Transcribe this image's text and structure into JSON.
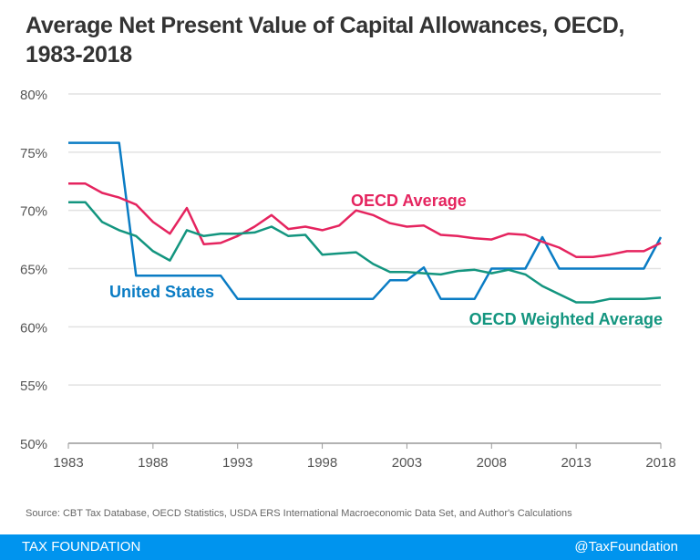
{
  "chart_data": {
    "type": "line",
    "title": "Average Net Present Value of Capital Allowances, OECD, 1983-2018",
    "xlabel": "",
    "ylabel": "",
    "xlim": [
      1983,
      2018
    ],
    "ylim": [
      50,
      80
    ],
    "x_ticks": [
      1983,
      1988,
      1993,
      1998,
      2003,
      2008,
      2013,
      2018
    ],
    "y_ticks": [
      "50%",
      "55%",
      "60%",
      "65%",
      "70%",
      "75%",
      "80%"
    ],
    "grid": "horizontal",
    "legend": "inline labels",
    "x": [
      1983,
      1984,
      1985,
      1986,
      1987,
      1988,
      1989,
      1990,
      1991,
      1992,
      1993,
      1994,
      1995,
      1996,
      1997,
      1998,
      1999,
      2000,
      2001,
      2002,
      2003,
      2004,
      2005,
      2006,
      2007,
      2008,
      2009,
      2010,
      2011,
      2012,
      2013,
      2014,
      2015,
      2016,
      2017,
      2018
    ],
    "series": [
      {
        "name": "United States",
        "color": "#0a7cc4",
        "values": [
          75.8,
          75.8,
          75.8,
          75.8,
          64.4,
          64.4,
          64.4,
          64.4,
          64.4,
          64.4,
          62.4,
          62.4,
          62.4,
          62.4,
          62.4,
          62.4,
          62.4,
          62.4,
          62.4,
          64.0,
          64.0,
          65.1,
          62.4,
          62.4,
          62.4,
          65.0,
          65.0,
          65.0,
          67.7,
          65.0,
          65.0,
          65.0,
          65.0,
          65.0,
          65.0,
          67.7
        ]
      },
      {
        "name": "OECD Average",
        "color": "#e5245f",
        "values": [
          72.3,
          72.3,
          71.5,
          71.1,
          70.5,
          69.0,
          68.0,
          70.2,
          67.1,
          67.2,
          67.8,
          68.6,
          69.6,
          68.4,
          68.6,
          68.3,
          68.7,
          70.0,
          69.6,
          68.9,
          68.6,
          68.7,
          67.9,
          67.8,
          67.6,
          67.5,
          68.0,
          67.9,
          67.3,
          66.8,
          66.0,
          66.0,
          66.2,
          66.5,
          66.5,
          67.2
        ]
      },
      {
        "name": "OECD Weighted Average",
        "color": "#13957f",
        "values": [
          70.7,
          70.7,
          69.0,
          68.3,
          67.8,
          66.5,
          65.7,
          68.3,
          67.8,
          68.0,
          68.0,
          68.1,
          68.6,
          67.8,
          67.9,
          66.2,
          66.3,
          66.4,
          65.4,
          64.7,
          64.7,
          64.6,
          64.5,
          64.8,
          64.9,
          64.6,
          64.9,
          64.5,
          63.5,
          62.8,
          62.1,
          62.1,
          62.4,
          62.4,
          62.4,
          62.5
        ]
      }
    ]
  },
  "source": "Source: CBT Tax Database, OECD Statistics, USDA ERS International Macroeconomic Data Set, and Author's Calculations",
  "footer": {
    "brand": "TAX FOUNDATION",
    "handle": "@TaxFoundation",
    "color": "#0094ee"
  }
}
